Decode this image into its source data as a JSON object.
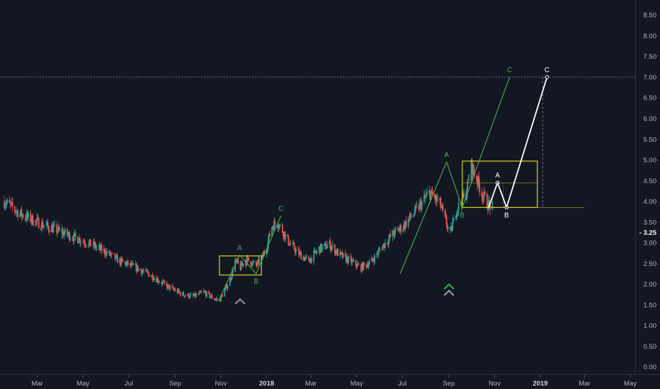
{
  "chart_data": {
    "type": "candlestick",
    "title": "",
    "xlabel": "",
    "ylabel": "",
    "y_scale": "linear",
    "ylim": [
      -0.15,
      8.75
    ],
    "y_ticks": [
      "0.00",
      "0.50",
      "1.00",
      "1.50",
      "2.00",
      "2.50",
      "3.00",
      "3.50",
      "4.00",
      "4.50",
      "5.00",
      "5.50",
      "6.00",
      "6.50",
      "7.00",
      "7.50",
      "8.00",
      "8.50"
    ],
    "x_ticks": [
      {
        "label": "Mar",
        "date": "2017-03",
        "bold": false
      },
      {
        "label": "May",
        "date": "2017-05",
        "bold": false
      },
      {
        "label": "Jul",
        "date": "2017-07",
        "bold": false
      },
      {
        "label": "Sep",
        "date": "2017-09",
        "bold": false
      },
      {
        "label": "Nov",
        "date": "2017-11",
        "bold": false
      },
      {
        "label": "2018",
        "date": "2018-01",
        "bold": true
      },
      {
        "label": "Mar",
        "date": "2018-03",
        "bold": false
      },
      {
        "label": "May",
        "date": "2018-05",
        "bold": false
      },
      {
        "label": "Jul",
        "date": "2018-07",
        "bold": false
      },
      {
        "label": "Sep",
        "date": "2018-09",
        "bold": false
      },
      {
        "label": "Nov",
        "date": "2018-11",
        "bold": false
      },
      {
        "label": "2019",
        "date": "2019-01",
        "bold": true
      },
      {
        "label": "Mar",
        "date": "2019-03",
        "bold": false
      },
      {
        "label": "May",
        "date": "2019-05",
        "bold": false
      }
    ],
    "last_price": "3.25",
    "target_level": "7.00",
    "price_path": [
      [
        "2017-01-16",
        4.0
      ],
      [
        "2017-02-06",
        3.7
      ],
      [
        "2017-03-06",
        3.45
      ],
      [
        "2017-04-03",
        3.25
      ],
      [
        "2017-05-01",
        3.05
      ],
      [
        "2017-05-29",
        2.8
      ],
      [
        "2017-06-19",
        2.55
      ],
      [
        "2017-07-10",
        2.4
      ],
      [
        "2017-08-01",
        2.2
      ],
      [
        "2017-08-21",
        1.95
      ],
      [
        "2017-09-11",
        1.75
      ],
      [
        "2017-09-25",
        1.7
      ],
      [
        "2017-10-09",
        1.8
      ],
      [
        "2017-10-23",
        1.65
      ],
      [
        "2017-10-30",
        1.6
      ],
      [
        "2017-11-06",
        1.85
      ],
      [
        "2017-11-13",
        2.1
      ],
      [
        "2017-11-20",
        2.55
      ],
      [
        "2017-11-27",
        2.4
      ],
      [
        "2017-12-04",
        2.6
      ],
      [
        "2017-12-18",
        2.45
      ],
      [
        "2017-12-25",
        2.6
      ],
      [
        "2018-01-01",
        2.9
      ],
      [
        "2018-01-08",
        3.4
      ],
      [
        "2018-01-15",
        3.5
      ],
      [
        "2018-01-22",
        3.3
      ],
      [
        "2018-01-29",
        3.05
      ],
      [
        "2018-02-12",
        2.75
      ],
      [
        "2018-02-26",
        2.55
      ],
      [
        "2018-03-12",
        2.85
      ],
      [
        "2018-03-26",
        2.95
      ],
      [
        "2018-04-09",
        2.7
      ],
      [
        "2018-04-23",
        2.55
      ],
      [
        "2018-05-07",
        2.4
      ],
      [
        "2018-05-21",
        2.55
      ],
      [
        "2018-06-04",
        2.9
      ],
      [
        "2018-06-18",
        3.2
      ],
      [
        "2018-07-02",
        3.4
      ],
      [
        "2018-07-16",
        3.7
      ],
      [
        "2018-08-06",
        4.2
      ],
      [
        "2018-08-20",
        3.95
      ],
      [
        "2018-08-27",
        3.55
      ],
      [
        "2018-09-03",
        3.2
      ],
      [
        "2018-09-10",
        3.75
      ],
      [
        "2018-09-24",
        4.2
      ],
      [
        "2018-10-01",
        4.85
      ],
      [
        "2018-10-08",
        4.55
      ],
      [
        "2018-10-15",
        4.2
      ],
      [
        "2018-10-22",
        3.95
      ],
      [
        "2018-10-29",
        3.85
      ]
    ],
    "annotations": [
      {
        "label": "A",
        "color": "#4caf50",
        "points": [
          [
            "2017-10-29",
            1.6
          ],
          [
            "2017-11-26",
            2.7
          ]
        ]
      },
      {
        "label": "B",
        "color": "#4caf50",
        "points": [
          [
            "2017-11-26",
            2.7
          ],
          [
            "2017-12-18",
            2.25
          ]
        ]
      },
      {
        "label": "C",
        "color": "#4caf50",
        "points": [
          [
            "2017-12-18",
            2.25
          ],
          [
            "2018-01-20",
            3.65
          ]
        ]
      },
      {
        "label": "A",
        "color": "#4caf50",
        "points": [
          [
            "2018-06-28",
            2.25
          ],
          [
            "2018-08-29",
            4.95
          ]
        ]
      },
      {
        "label": "B",
        "color": "#4caf50",
        "points": [
          [
            "2018-08-29",
            4.95
          ],
          [
            "2018-09-19",
            3.85
          ]
        ]
      },
      {
        "label": "C",
        "color": "#4caf50",
        "points": [
          [
            "2018-09-19",
            3.85
          ],
          [
            "2018-11-21",
            7.0
          ]
        ]
      },
      {
        "label": "A",
        "color": "#ffffff",
        "points": [
          [
            "2018-10-24",
            3.85
          ],
          [
            "2018-11-05",
            4.45
          ]
        ]
      },
      {
        "label": "B",
        "color": "#ffffff",
        "points": [
          [
            "2018-11-05",
            4.45
          ],
          [
            "2018-11-17",
            3.85
          ]
        ]
      },
      {
        "label": "C",
        "color": "#ffffff",
        "points": [
          [
            "2018-11-17",
            3.85
          ],
          [
            "2019-01-10",
            7.0
          ]
        ]
      }
    ],
    "boxes": [
      {
        "x": [
          "2017-10-30",
          "2017-12-25"
        ],
        "y": [
          2.22,
          2.68
        ],
        "color": "#c8c823"
      },
      {
        "x": [
          "2018-09-19",
          "2018-12-28"
        ],
        "y": [
          3.85,
          4.97
        ],
        "color": "#c8c823"
      }
    ],
    "grid": false,
    "legend": "none"
  }
}
